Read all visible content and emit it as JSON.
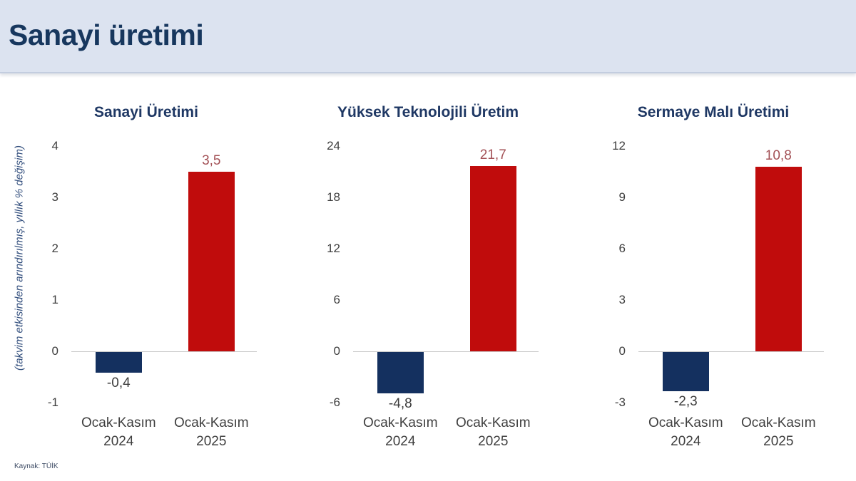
{
  "header": {
    "title": "Sanayi üretimi"
  },
  "axis_note": "(takvim etkisinden arındırılmış, yıllık % değişim)",
  "source": "Kaynak: TÜİK",
  "colors": {
    "header_bg": "#dce3f0",
    "header_title": "#17375e",
    "chart_title": "#1f3864",
    "negative_bar": "#14305f",
    "positive_bar": "#c00c0c",
    "positive_label": "#a35156",
    "negative_label": "#3d3d3d",
    "tick_label": "#3f3f3f",
    "zero_line": "#c9c9c9"
  },
  "chart_data": [
    {
      "type": "bar",
      "title": "Sanayi Üretimi",
      "categories": [
        "Ocak-Kasım\n2024",
        "Ocak-Kasım\n2025"
      ],
      "values": [
        -0.4,
        3.5
      ],
      "value_labels": [
        "-0,4",
        "3,5"
      ],
      "ticks": [
        4,
        3,
        2,
        1,
        0,
        -1
      ],
      "ylim": [
        -1,
        4
      ],
      "ylabel": "(takvim etkisinden arındırılmış, yıllık % değişim)",
      "grid": false,
      "legend": false
    },
    {
      "type": "bar",
      "title": "Yüksek Teknolojili Üretim",
      "categories": [
        "Ocak-Kasım\n2024",
        "Ocak-Kasım\n2025"
      ],
      "values": [
        -4.8,
        21.7
      ],
      "value_labels": [
        "-4,8",
        "21,7"
      ],
      "ticks": [
        24,
        18,
        12,
        6,
        0,
        -6
      ],
      "ylim": [
        -6,
        24
      ],
      "ylabel": "(takvim etkisinden arındırılmış, yıllık % değişim)",
      "grid": false,
      "legend": false
    },
    {
      "type": "bar",
      "title": "Sermaye Malı Üretimi",
      "categories": [
        "Ocak-Kasım\n2024",
        "Ocak-Kasım\n2025"
      ],
      "values": [
        -2.3,
        10.8
      ],
      "value_labels": [
        "-2,3",
        "10,8"
      ],
      "ticks": [
        12,
        9,
        6,
        3,
        0,
        -3
      ],
      "ylim": [
        -3,
        12
      ],
      "ylabel": "(takvim etkisinden arındırılmış, yıllık % değişim)",
      "grid": false,
      "legend": false
    }
  ]
}
